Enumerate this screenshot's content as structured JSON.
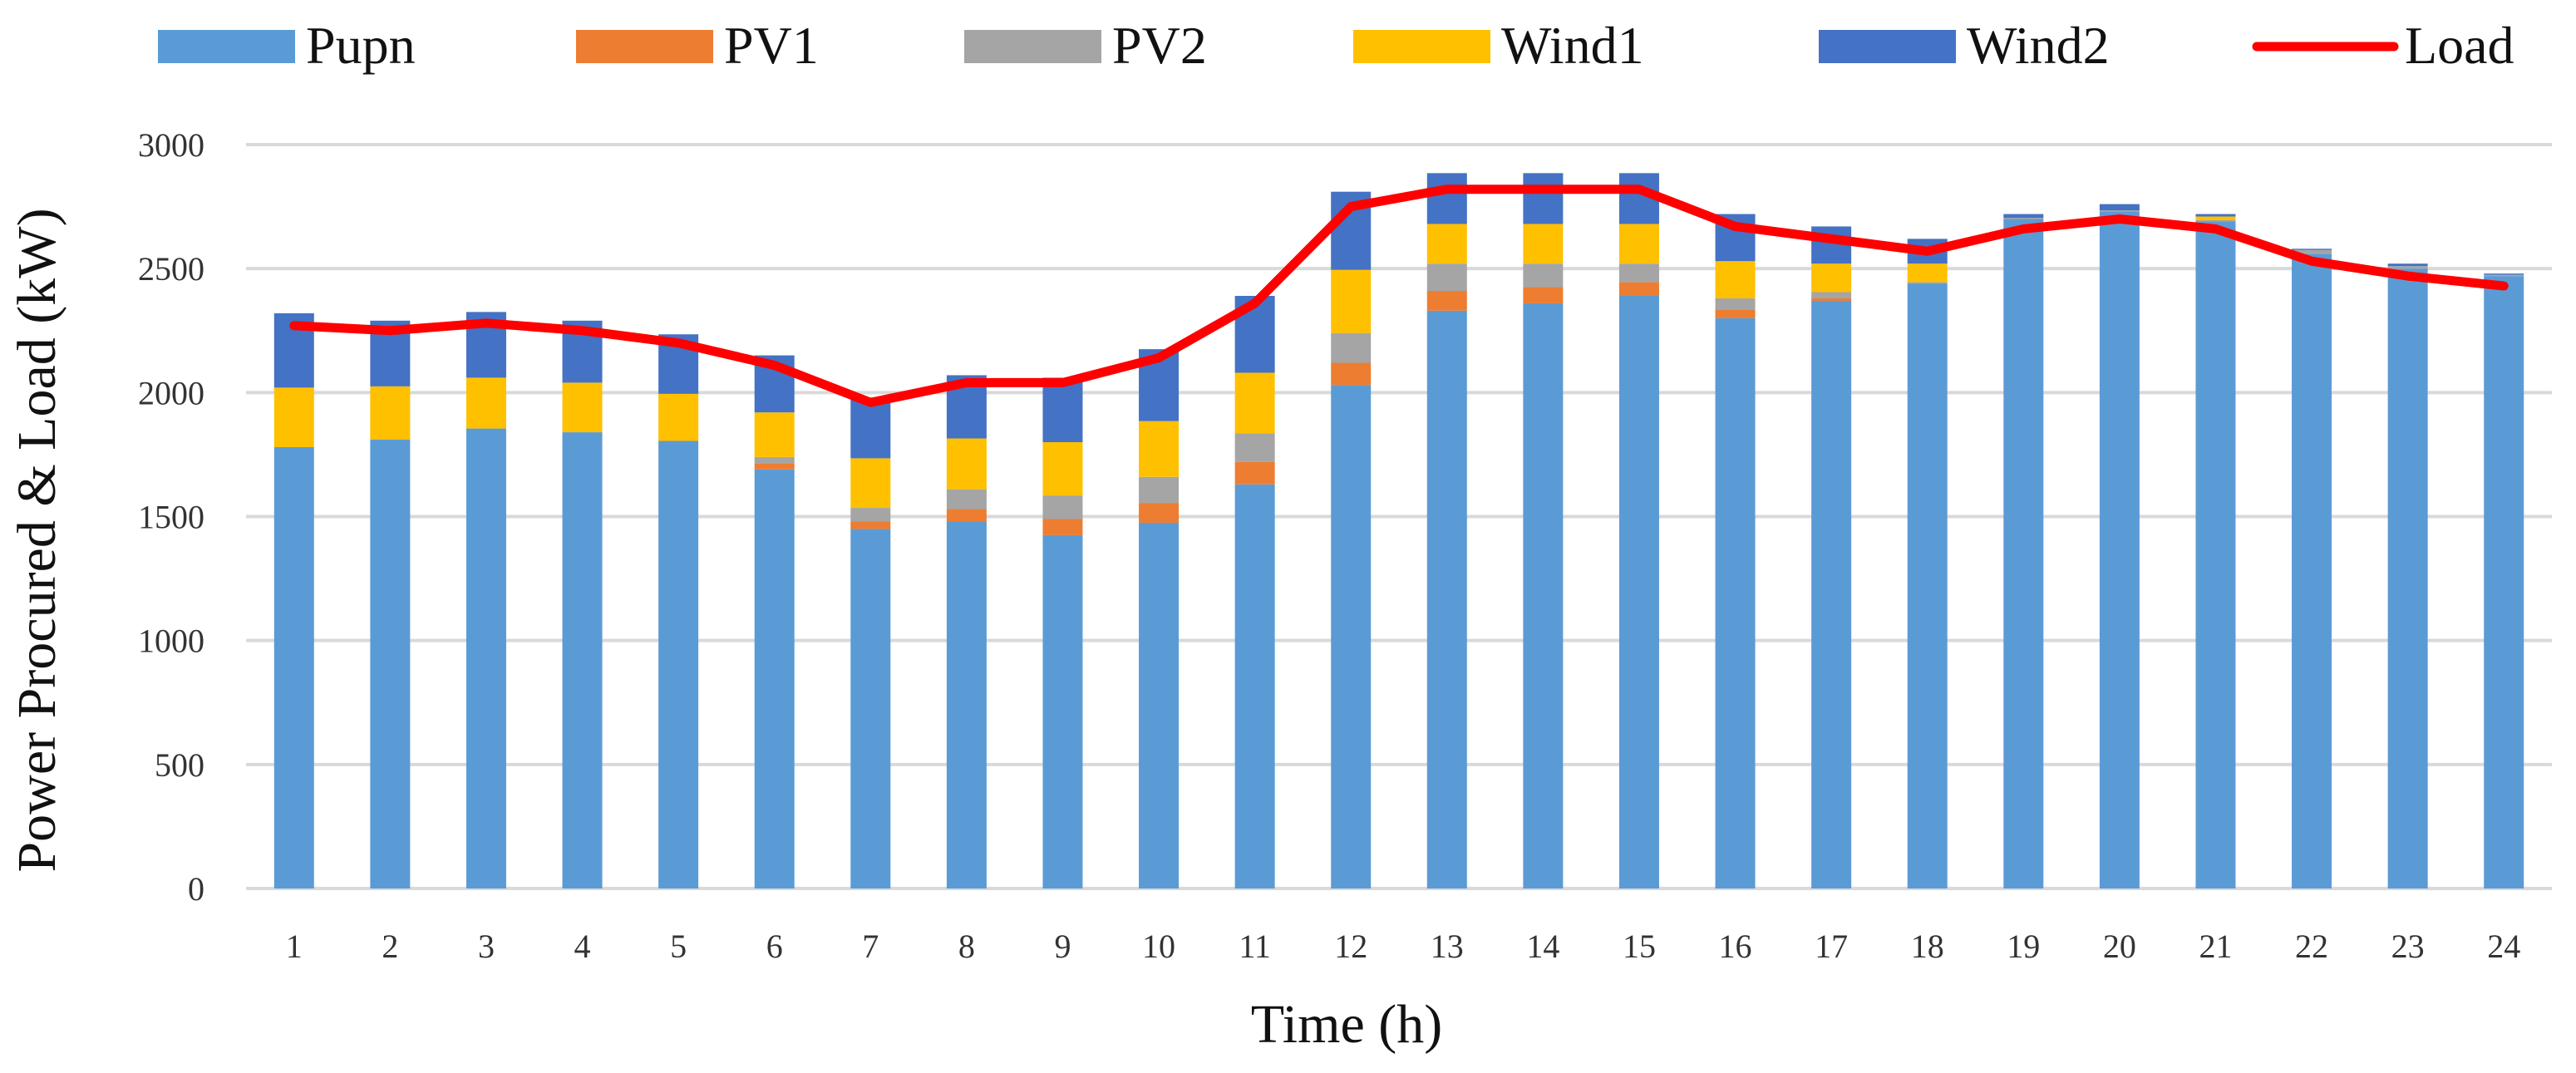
{
  "chart_data": {
    "type": "bar",
    "stacked": true,
    "title": "",
    "xlabel": "Time (h)",
    "ylabel": "Power Procured  & Load (kW)",
    "ylim": [
      0,
      3000
    ],
    "yticks": [
      0,
      500,
      1000,
      1500,
      2000,
      2500,
      3000
    ],
    "grid": true,
    "legend_position": "top",
    "categories": [
      "1",
      "2",
      "3",
      "4",
      "5",
      "6",
      "7",
      "8",
      "9",
      "10",
      "11",
      "12",
      "13",
      "14",
      "15",
      "16",
      "17",
      "18",
      "19",
      "20",
      "21",
      "22",
      "23",
      "24"
    ],
    "series": [
      {
        "name": "Pupn",
        "kind": "bar",
        "color": "#5b9bd5",
        "values": [
          1780,
          1810,
          1855,
          1840,
          1805,
          1690,
          1450,
          1480,
          1425,
          1475,
          1630,
          2030,
          2330,
          2360,
          2390,
          2300,
          2370,
          2440,
          2700,
          2730,
          2690,
          2560,
          2500,
          2470
        ]
      },
      {
        "name": "PV1",
        "kind": "bar",
        "color": "#ed7d31",
        "values": [
          0,
          0,
          0,
          0,
          0,
          25,
          30,
          50,
          65,
          80,
          90,
          90,
          80,
          65,
          55,
          35,
          10,
          0,
          0,
          0,
          0,
          0,
          0,
          0
        ]
      },
      {
        "name": "PV2",
        "kind": "bar",
        "color": "#a5a5a5",
        "values": [
          0,
          0,
          0,
          0,
          0,
          25,
          55,
          80,
          95,
          105,
          115,
          120,
          110,
          95,
          75,
          45,
          25,
          5,
          5,
          5,
          5,
          15,
          10,
          5
        ]
      },
      {
        "name": "Wind1",
        "kind": "bar",
        "color": "#ffc000",
        "values": [
          240,
          215,
          205,
          200,
          190,
          180,
          200,
          205,
          215,
          225,
          245,
          255,
          160,
          160,
          160,
          150,
          115,
          75,
          0,
          0,
          15,
          0,
          0,
          0
        ]
      },
      {
        "name": "Wind2",
        "kind": "bar",
        "color": "#4472c4",
        "values": [
          300,
          265,
          265,
          250,
          240,
          230,
          245,
          255,
          260,
          290,
          310,
          315,
          205,
          205,
          205,
          190,
          150,
          100,
          15,
          25,
          10,
          5,
          10,
          5
        ]
      },
      {
        "name": "Load",
        "kind": "line",
        "color": "#ff0000",
        "values": [
          2270,
          2250,
          2280,
          2250,
          2200,
          2110,
          1960,
          2040,
          2040,
          2140,
          2360,
          2750,
          2820,
          2820,
          2820,
          2670,
          2620,
          2570,
          2660,
          2700,
          2660,
          2530,
          2470,
          2430
        ]
      }
    ]
  }
}
